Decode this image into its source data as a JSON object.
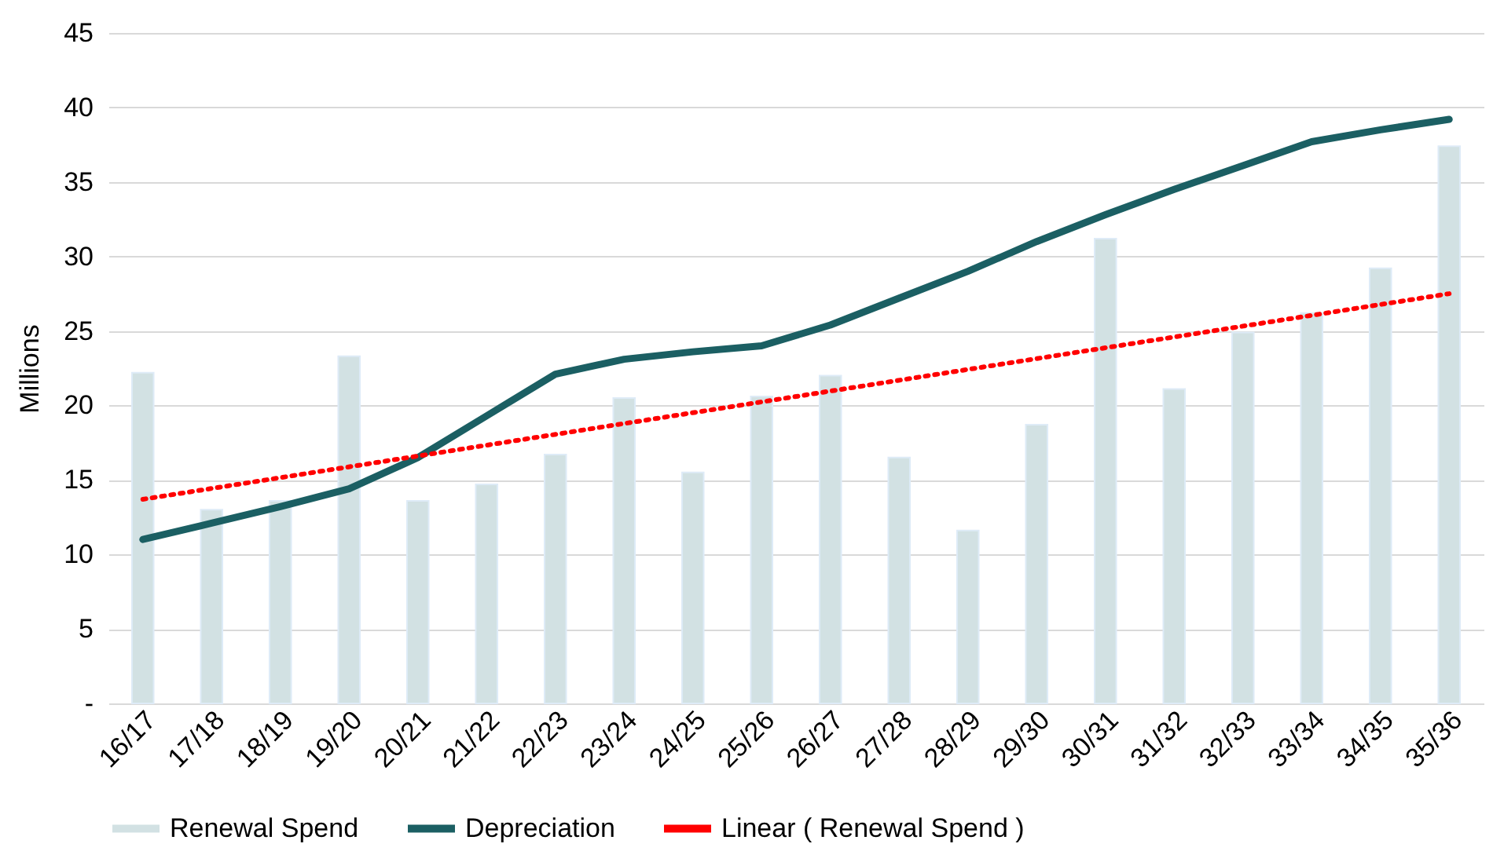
{
  "chart_data": {
    "type": "bar",
    "ylabel": "Millions",
    "categories": [
      "16/17",
      "17/18",
      "18/19",
      "19/20",
      "20/21",
      "21/22",
      "22/23",
      "23/24",
      "24/25",
      "25/26",
      "26/27",
      "27/28",
      "28/29",
      "29/30",
      "30/31",
      "31/32",
      "32/33",
      "33/34",
      "34/35",
      "35/36"
    ],
    "series": [
      {
        "name": "Renewal Spend",
        "color": "#d2e1e3",
        "values": [
          22.2,
          13.0,
          13.6,
          23.3,
          13.6,
          14.7,
          16.7,
          20.5,
          15.5,
          20.6,
          22.0,
          16.5,
          11.6,
          18.7,
          31.2,
          21.1,
          24.9,
          26.2,
          29.2,
          37.4
        ]
      },
      {
        "name": "Depreciation",
        "type": "line",
        "color": "#1b5f63",
        "line_style": "solid",
        "values": [
          11.0,
          12.1,
          13.2,
          14.4,
          16.5,
          19.3,
          22.1,
          23.1,
          23.6,
          24.0,
          25.4,
          27.2,
          29.0,
          31.0,
          32.8,
          34.5,
          36.1,
          37.7,
          38.5,
          39.2
        ]
      },
      {
        "name": "Linear ( Renewal Spend )",
        "type": "line",
        "color": "#ff0000",
        "line_style": "dotted",
        "x": [
          "16/17",
          "35/36"
        ],
        "values": [
          13.7,
          27.5
        ]
      }
    ],
    "ylim": [
      0,
      45
    ],
    "yticks": [
      {
        "value": 0,
        "label": "-"
      },
      5,
      10,
      15,
      20,
      25,
      30,
      35,
      40,
      45
    ],
    "grid": "y",
    "legend": "bottom"
  }
}
